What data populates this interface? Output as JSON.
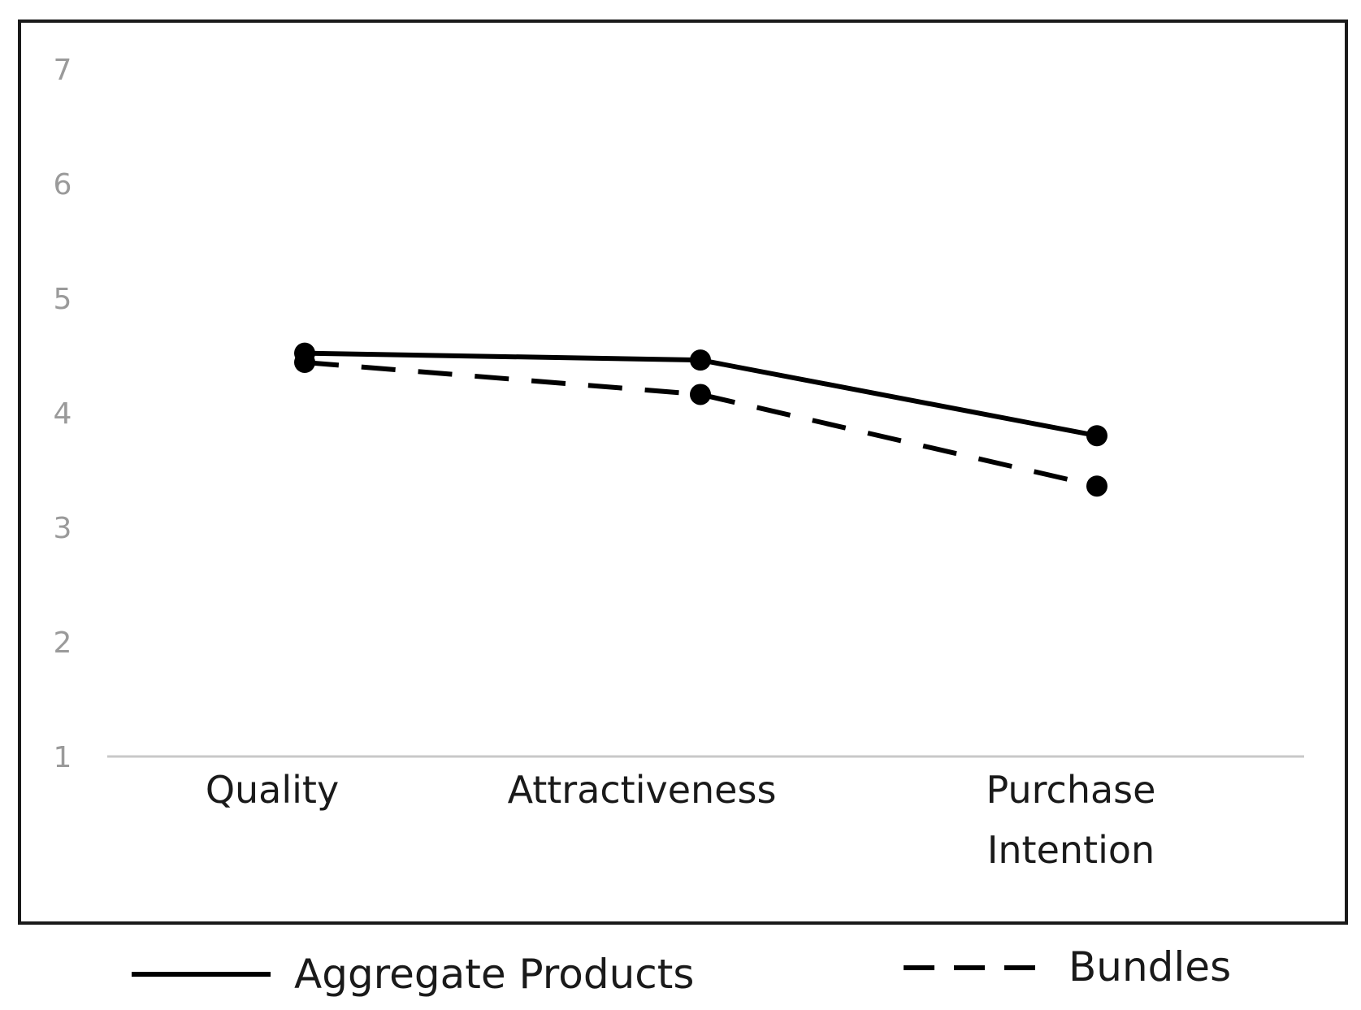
{
  "chart_data": {
    "type": "line",
    "title": "",
    "xlabel": "",
    "ylabel": "",
    "categories": [
      [
        "Quality"
      ],
      [
        "Attractiveness"
      ],
      [
        "Purchase",
        "Intention"
      ]
    ],
    "ylim": [
      1,
      7
    ],
    "yticks": [
      "1",
      "2",
      "3",
      "4",
      "5",
      "6",
      "7"
    ],
    "grid": false,
    "legend_position": "bottom",
    "series": [
      {
        "name": "Aggregate Products",
        "style": "solid",
        "color": "#000000",
        "values": [
          4.52,
          4.46,
          3.8
        ]
      },
      {
        "name": "Bundles",
        "style": "dashed",
        "color": "#000000",
        "values": [
          4.44,
          4.16,
          3.36
        ]
      }
    ]
  }
}
